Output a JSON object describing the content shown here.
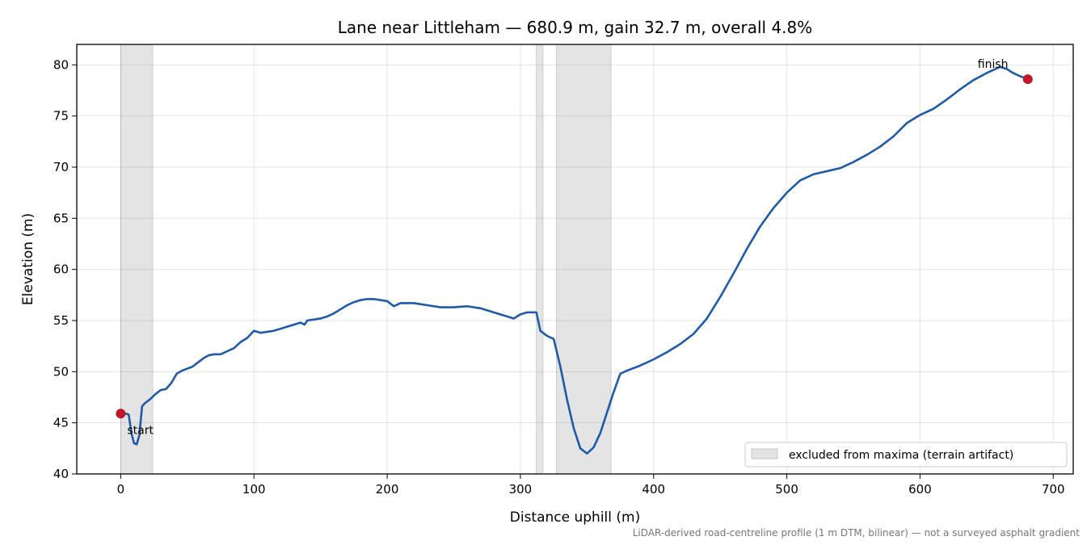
{
  "chart_data": {
    "type": "line",
    "title": "Lane near Littleham — 680.9 m, gain 32.7 m, overall 4.8%",
    "xlabel": "Distance uphill (m)",
    "ylabel": "Elevation (m)",
    "xlim": [
      -33,
      715
    ],
    "ylim": [
      40,
      82
    ],
    "xticks": [
      0,
      100,
      200,
      300,
      400,
      500,
      600,
      700
    ],
    "yticks": [
      40,
      45,
      50,
      55,
      60,
      65,
      70,
      75,
      80
    ],
    "grid": true,
    "legend": {
      "placement": "bottom-right",
      "label": "excluded from maxima (terrain artifact)"
    },
    "footnote": "LiDAR-derived road-centreline profile (1 m DTM, bilinear) — not a surveyed asphalt gradient",
    "excluded_ranges": [
      [
        0,
        24
      ],
      [
        312,
        317
      ],
      [
        327,
        368
      ]
    ],
    "markers": [
      {
        "label": "start",
        "x": 0,
        "y": 45.9
      },
      {
        "label": "finish",
        "x": 680.9,
        "y": 78.6
      }
    ],
    "series": [
      {
        "color": "#1f5aa8",
        "x": [
          0,
          4,
          6,
          8,
          10,
          12,
          14,
          16,
          18,
          22,
          26,
          30,
          34,
          38,
          42,
          46,
          50,
          54,
          58,
          62,
          66,
          70,
          75,
          80,
          85,
          90,
          95,
          100,
          105,
          110,
          115,
          120,
          125,
          130,
          135,
          138,
          140,
          145,
          150,
          155,
          160,
          165,
          170,
          175,
          180,
          185,
          190,
          195,
          200,
          205,
          210,
          215,
          220,
          230,
          240,
          250,
          260,
          270,
          280,
          290,
          295,
          300,
          305,
          310,
          312,
          315,
          320,
          325,
          330,
          335,
          340,
          345,
          350,
          355,
          360,
          365,
          370,
          375,
          380,
          390,
          400,
          410,
          420,
          430,
          440,
          450,
          460,
          470,
          480,
          490,
          500,
          510,
          520,
          530,
          540,
          550,
          560,
          570,
          580,
          590,
          600,
          610,
          620,
          630,
          640,
          650,
          660,
          665,
          670,
          675,
          680.9
        ],
        "y": [
          45.9,
          45.9,
          45.8,
          44.0,
          43.0,
          42.9,
          43.8,
          46.6,
          46.9,
          47.3,
          47.8,
          48.2,
          48.3,
          48.9,
          49.8,
          50.1,
          50.3,
          50.5,
          50.9,
          51.3,
          51.6,
          51.7,
          51.7,
          52.0,
          52.3,
          52.9,
          53.3,
          54.0,
          53.8,
          53.9,
          54.0,
          54.2,
          54.4,
          54.6,
          54.8,
          54.6,
          55.0,
          55.1,
          55.2,
          55.4,
          55.7,
          56.1,
          56.5,
          56.8,
          57.0,
          57.1,
          57.1,
          57.0,
          56.9,
          56.4,
          56.7,
          56.7,
          56.7,
          56.5,
          56.3,
          56.3,
          56.4,
          56.2,
          55.8,
          55.4,
          55.2,
          55.6,
          55.8,
          55.8,
          55.8,
          54.0,
          53.5,
          53.2,
          50.5,
          47.3,
          44.5,
          42.5,
          42.0,
          42.6,
          44.0,
          46.0,
          48.0,
          49.8,
          50.1,
          50.6,
          51.2,
          51.9,
          52.7,
          53.7,
          55.2,
          57.3,
          59.6,
          62.0,
          64.2,
          66.0,
          67.5,
          68.7,
          69.3,
          69.6,
          69.9,
          70.5,
          71.2,
          72.0,
          73.0,
          74.3,
          75.1,
          75.7,
          76.6,
          77.6,
          78.5,
          79.2,
          79.8,
          79.6,
          79.2,
          78.9,
          78.6
        ]
      }
    ]
  }
}
